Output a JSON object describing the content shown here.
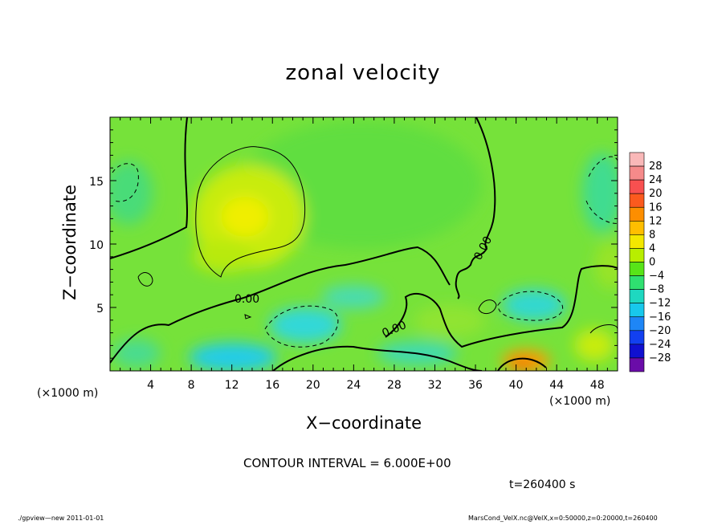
{
  "chart_data": {
    "type": "heatmap",
    "title": "zonal velocity",
    "xlabel": "X−coordinate",
    "ylabel": "Z−coordinate",
    "x_unit": "(×1000 m)",
    "y_unit": "(×1000 m)",
    "xlim": [
      0,
      50
    ],
    "ylim": [
      0,
      20
    ],
    "x_ticks": [
      4,
      8,
      12,
      16,
      20,
      24,
      28,
      32,
      36,
      40,
      44,
      48
    ],
    "y_ticks": [
      5,
      10,
      15
    ],
    "x_tick_labels": [
      "4",
      "8",
      "12",
      "16",
      "20",
      "24",
      "28",
      "32",
      "36",
      "40",
      "44",
      "48"
    ],
    "y_tick_labels": [
      "5",
      "10",
      "15"
    ],
    "colorbar": {
      "levels": [
        28,
        24,
        20,
        16,
        12,
        8,
        4,
        0,
        -4,
        -8,
        -12,
        -16,
        -20,
        -24,
        -28
      ],
      "labels": [
        "28",
        "24",
        "20",
        "16",
        "12",
        "8",
        "4",
        "0",
        "−4",
        "−8",
        "−12",
        "−16",
        "−20",
        "−24",
        "−28"
      ],
      "colors": [
        "#f58a8a",
        "#f85050",
        "#fb5a1e",
        "#fd8e00",
        "#ffbe00",
        "#f3e800",
        "#b8ee00",
        "#58e418",
        "#2fe070",
        "#1ed8c0",
        "#18c8ec",
        "#1e86f6",
        "#1240f0",
        "#1010d0",
        "#6a0ca8"
      ]
    },
    "contour_labels": [
      "0.00",
      "0.00",
      "0.00"
    ],
    "contour_interval_text": "CONTOUR INTERVAL = 6.000E+00",
    "time_text": "t=260400  s"
  },
  "footer": {
    "left": "./gpview—new   2011-01-01",
    "right": "MarsCond_VelX.nc@VelX,x=0:50000,z=0:20000,t=260400"
  },
  "colors": {
    "field_base": "#78e436",
    "warm": "#e8f000",
    "cool": "#40e0b0",
    "cold": "#20d8e8",
    "hot": "#ff9a00"
  }
}
